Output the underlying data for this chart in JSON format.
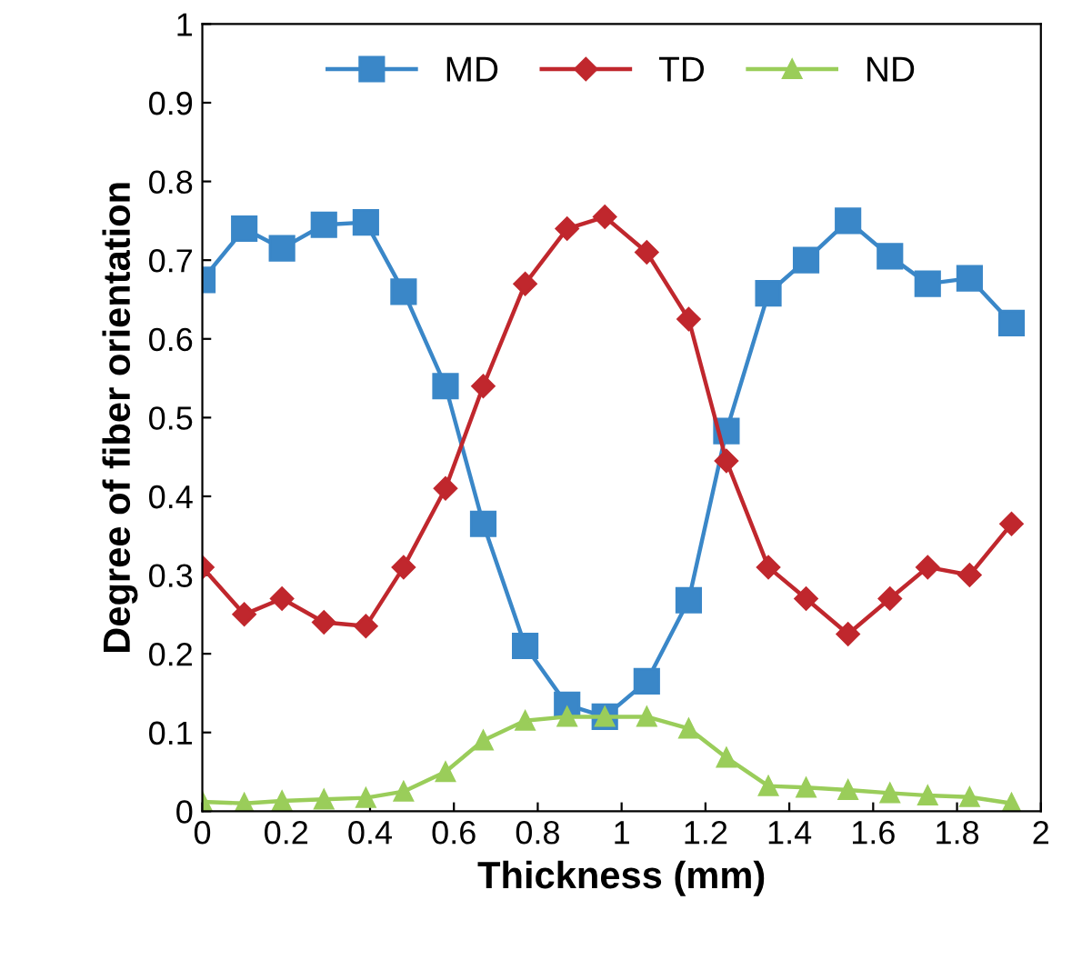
{
  "chart_data": {
    "type": "line",
    "xlabel": "Thickness (mm)",
    "ylabel": "Degree of fiber orientation",
    "x": [
      0,
      0.1,
      0.19,
      0.29,
      0.39,
      0.48,
      0.58,
      0.67,
      0.77,
      0.87,
      0.96,
      1.06,
      1.16,
      1.25,
      1.35,
      1.44,
      1.54,
      1.64,
      1.73,
      1.83,
      1.93
    ],
    "series": [
      {
        "name": "MD",
        "color": "#3a87c8",
        "marker": "square",
        "values": [
          0.675,
          0.74,
          0.715,
          0.745,
          0.748,
          0.66,
          0.54,
          0.365,
          0.21,
          0.135,
          0.12,
          0.165,
          0.268,
          0.483,
          0.658,
          0.7,
          0.75,
          0.705,
          0.67,
          0.677,
          0.62
        ]
      },
      {
        "name": "TD",
        "color": "#c0272d",
        "marker": "diamond",
        "values": [
          0.31,
          0.25,
          0.27,
          0.24,
          0.235,
          0.31,
          0.41,
          0.54,
          0.67,
          0.74,
          0.755,
          0.71,
          0.625,
          0.445,
          0.31,
          0.27,
          0.225,
          0.27,
          0.31,
          0.3,
          0.365
        ]
      },
      {
        "name": "ND",
        "color": "#9acd5a",
        "marker": "triangle",
        "values": [
          0.012,
          0.01,
          0.013,
          0.015,
          0.017,
          0.025,
          0.05,
          0.09,
          0.115,
          0.12,
          0.12,
          0.12,
          0.105,
          0.068,
          0.032,
          0.03,
          0.027,
          0.023,
          0.02,
          0.018,
          0.01
        ]
      }
    ],
    "xlim": [
      0,
      2
    ],
    "xticks": [
      0,
      0.2,
      0.4,
      0.6,
      0.8,
      1,
      1.2,
      1.4,
      1.6,
      1.8,
      2
    ],
    "ylim": [
      0,
      1
    ],
    "yticks": [
      0,
      0.1,
      0.2,
      0.3,
      0.4,
      0.5,
      0.6,
      0.7,
      0.8,
      0.9,
      1
    ],
    "legend": "top",
    "grid": false
  }
}
